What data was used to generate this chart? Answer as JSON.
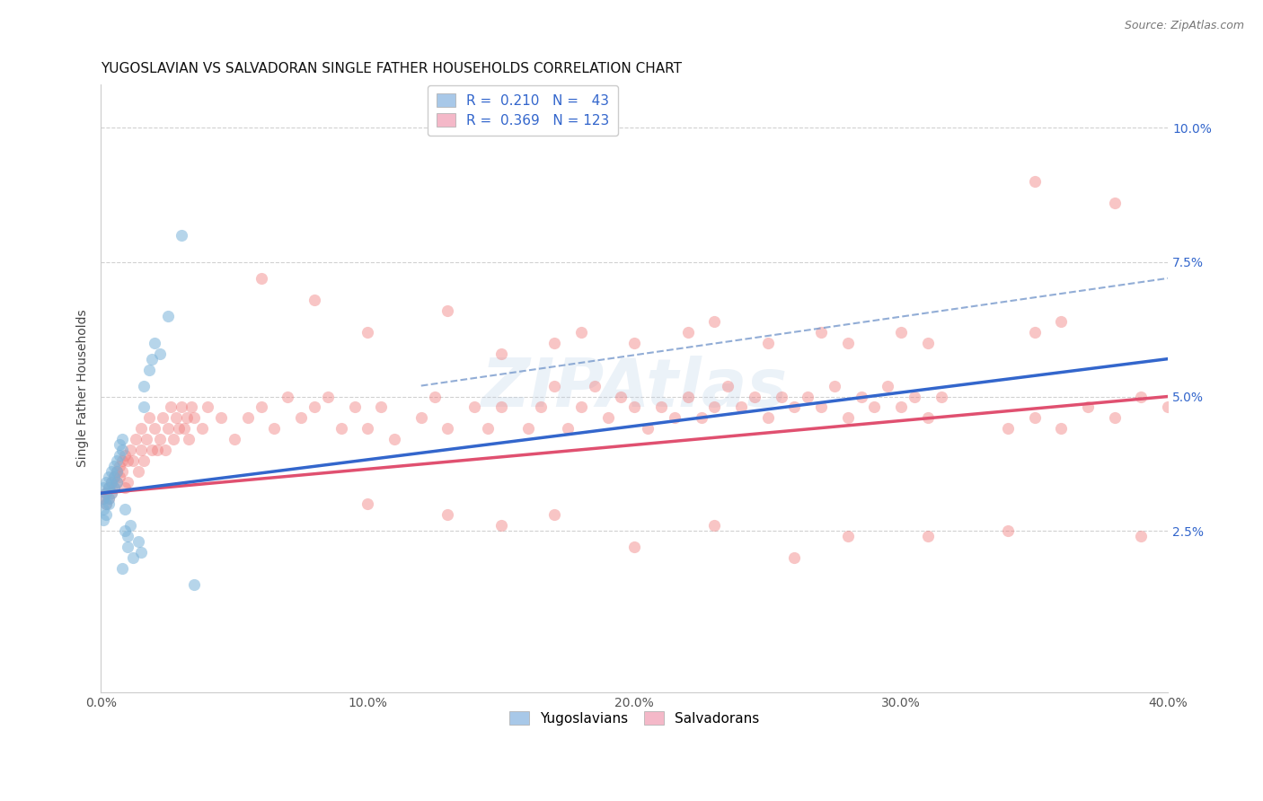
{
  "title": "YUGOSLAVIAN VS SALVADORAN SINGLE FATHER HOUSEHOLDS CORRELATION CHART",
  "source": "Source: ZipAtlas.com",
  "ylabel": "Single Father Households",
  "xlim": [
    0.0,
    0.4
  ],
  "ylim": [
    -0.005,
    0.108
  ],
  "yug_color": "#7ab3d9",
  "sal_color": "#f08080",
  "background_color": "#ffffff",
  "grid_color": "#cccccc",
  "title_fontsize": 11,
  "axis_label_fontsize": 10,
  "tick_fontsize": 10,
  "legend_fontsize": 11,
  "legend_R_N_color": "#3366cc",
  "legend_label_color": "#333333",
  "yug_line_color": "#3366cc",
  "sal_line_color": "#e05070",
  "dash_line_color": "#7799cc",
  "right_tick_color": "#3366cc",
  "yug_scatter": [
    [
      0.001,
      0.031
    ],
    [
      0.001,
      0.033
    ],
    [
      0.001,
      0.029
    ],
    [
      0.001,
      0.027
    ],
    [
      0.002,
      0.032
    ],
    [
      0.002,
      0.03
    ],
    [
      0.002,
      0.034
    ],
    [
      0.002,
      0.028
    ],
    [
      0.003,
      0.033
    ],
    [
      0.003,
      0.031
    ],
    [
      0.003,
      0.035
    ],
    [
      0.003,
      0.03
    ],
    [
      0.004,
      0.034
    ],
    [
      0.004,
      0.032
    ],
    [
      0.004,
      0.036
    ],
    [
      0.005,
      0.035
    ],
    [
      0.005,
      0.033
    ],
    [
      0.005,
      0.037
    ],
    [
      0.006,
      0.036
    ],
    [
      0.006,
      0.038
    ],
    [
      0.006,
      0.034
    ],
    [
      0.007,
      0.039
    ],
    [
      0.007,
      0.041
    ],
    [
      0.008,
      0.04
    ],
    [
      0.008,
      0.042
    ],
    [
      0.008,
      0.018
    ],
    [
      0.009,
      0.029
    ],
    [
      0.009,
      0.025
    ],
    [
      0.01,
      0.022
    ],
    [
      0.01,
      0.024
    ],
    [
      0.011,
      0.026
    ],
    [
      0.012,
      0.02
    ],
    [
      0.014,
      0.023
    ],
    [
      0.015,
      0.021
    ],
    [
      0.016,
      0.048
    ],
    [
      0.016,
      0.052
    ],
    [
      0.018,
      0.055
    ],
    [
      0.019,
      0.057
    ],
    [
      0.02,
      0.06
    ],
    [
      0.022,
      0.058
    ],
    [
      0.025,
      0.065
    ],
    [
      0.03,
      0.08
    ],
    [
      0.035,
      0.015
    ]
  ],
  "sal_scatter": [
    [
      0.001,
      0.031
    ],
    [
      0.002,
      0.032
    ],
    [
      0.002,
      0.03
    ],
    [
      0.003,
      0.033
    ],
    [
      0.003,
      0.031
    ],
    [
      0.004,
      0.034
    ],
    [
      0.004,
      0.032
    ],
    [
      0.005,
      0.035
    ],
    [
      0.005,
      0.033
    ],
    [
      0.006,
      0.036
    ],
    [
      0.006,
      0.034
    ],
    [
      0.007,
      0.037
    ],
    [
      0.007,
      0.035
    ],
    [
      0.008,
      0.038
    ],
    [
      0.008,
      0.036
    ],
    [
      0.009,
      0.039
    ],
    [
      0.009,
      0.033
    ],
    [
      0.01,
      0.034
    ],
    [
      0.01,
      0.038
    ],
    [
      0.011,
      0.04
    ],
    [
      0.012,
      0.038
    ],
    [
      0.013,
      0.042
    ],
    [
      0.014,
      0.036
    ],
    [
      0.015,
      0.04
    ],
    [
      0.015,
      0.044
    ],
    [
      0.016,
      0.038
    ],
    [
      0.017,
      0.042
    ],
    [
      0.018,
      0.046
    ],
    [
      0.019,
      0.04
    ],
    [
      0.02,
      0.044
    ],
    [
      0.021,
      0.04
    ],
    [
      0.022,
      0.042
    ],
    [
      0.023,
      0.046
    ],
    [
      0.024,
      0.04
    ],
    [
      0.025,
      0.044
    ],
    [
      0.026,
      0.048
    ],
    [
      0.027,
      0.042
    ],
    [
      0.028,
      0.046
    ],
    [
      0.029,
      0.044
    ],
    [
      0.03,
      0.048
    ],
    [
      0.031,
      0.044
    ],
    [
      0.032,
      0.046
    ],
    [
      0.033,
      0.042
    ],
    [
      0.034,
      0.048
    ],
    [
      0.035,
      0.046
    ],
    [
      0.038,
      0.044
    ],
    [
      0.04,
      0.048
    ],
    [
      0.045,
      0.046
    ],
    [
      0.05,
      0.042
    ],
    [
      0.055,
      0.046
    ],
    [
      0.06,
      0.048
    ],
    [
      0.065,
      0.044
    ],
    [
      0.07,
      0.05
    ],
    [
      0.075,
      0.046
    ],
    [
      0.08,
      0.048
    ],
    [
      0.085,
      0.05
    ],
    [
      0.09,
      0.044
    ],
    [
      0.095,
      0.048
    ],
    [
      0.1,
      0.044
    ],
    [
      0.105,
      0.048
    ],
    [
      0.11,
      0.042
    ],
    [
      0.12,
      0.046
    ],
    [
      0.125,
      0.05
    ],
    [
      0.13,
      0.044
    ],
    [
      0.14,
      0.048
    ],
    [
      0.145,
      0.044
    ],
    [
      0.15,
      0.048
    ],
    [
      0.16,
      0.044
    ],
    [
      0.165,
      0.048
    ],
    [
      0.17,
      0.052
    ],
    [
      0.175,
      0.044
    ],
    [
      0.18,
      0.048
    ],
    [
      0.185,
      0.052
    ],
    [
      0.19,
      0.046
    ],
    [
      0.195,
      0.05
    ],
    [
      0.2,
      0.048
    ],
    [
      0.205,
      0.044
    ],
    [
      0.21,
      0.048
    ],
    [
      0.215,
      0.046
    ],
    [
      0.22,
      0.05
    ],
    [
      0.225,
      0.046
    ],
    [
      0.23,
      0.048
    ],
    [
      0.235,
      0.052
    ],
    [
      0.24,
      0.048
    ],
    [
      0.245,
      0.05
    ],
    [
      0.25,
      0.046
    ],
    [
      0.255,
      0.05
    ],
    [
      0.26,
      0.048
    ],
    [
      0.265,
      0.05
    ],
    [
      0.27,
      0.048
    ],
    [
      0.275,
      0.052
    ],
    [
      0.28,
      0.046
    ],
    [
      0.285,
      0.05
    ],
    [
      0.29,
      0.048
    ],
    [
      0.295,
      0.052
    ],
    [
      0.3,
      0.048
    ],
    [
      0.305,
      0.05
    ],
    [
      0.31,
      0.046
    ],
    [
      0.315,
      0.05
    ],
    [
      0.06,
      0.072
    ],
    [
      0.08,
      0.068
    ],
    [
      0.1,
      0.062
    ],
    [
      0.13,
      0.066
    ],
    [
      0.15,
      0.058
    ],
    [
      0.17,
      0.06
    ],
    [
      0.18,
      0.062
    ],
    [
      0.2,
      0.06
    ],
    [
      0.22,
      0.062
    ],
    [
      0.23,
      0.064
    ],
    [
      0.25,
      0.06
    ],
    [
      0.27,
      0.062
    ],
    [
      0.28,
      0.06
    ],
    [
      0.3,
      0.062
    ],
    [
      0.31,
      0.06
    ],
    [
      0.1,
      0.03
    ],
    [
      0.13,
      0.028
    ],
    [
      0.15,
      0.026
    ],
    [
      0.17,
      0.028
    ],
    [
      0.2,
      0.022
    ],
    [
      0.23,
      0.026
    ],
    [
      0.26,
      0.02
    ],
    [
      0.28,
      0.024
    ],
    [
      0.31,
      0.024
    ],
    [
      0.34,
      0.025
    ],
    [
      0.34,
      0.044
    ],
    [
      0.35,
      0.046
    ],
    [
      0.36,
      0.044
    ],
    [
      0.35,
      0.062
    ],
    [
      0.36,
      0.064
    ],
    [
      0.37,
      0.048
    ],
    [
      0.38,
      0.046
    ],
    [
      0.39,
      0.05
    ],
    [
      0.4,
      0.048
    ],
    [
      0.35,
      0.09
    ],
    [
      0.38,
      0.086
    ],
    [
      0.39,
      0.024
    ]
  ]
}
